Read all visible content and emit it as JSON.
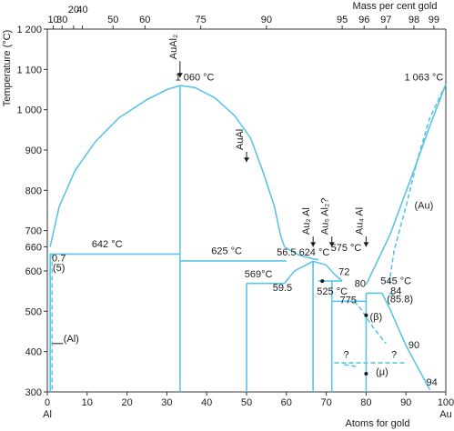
{
  "chart_data": {
    "type": "phase-diagram",
    "title": "",
    "ylabel": "Temperature (°C)",
    "xlabel_bottom": "Atoms for gold",
    "xlabel_top": "Mass per cent gold",
    "xlim": [
      0,
      100
    ],
    "ylim": [
      300,
      1200
    ],
    "x_end_labels": [
      "Al",
      "Au"
    ],
    "y_ticks": [
      {
        "value": 300,
        "label": "300"
      },
      {
        "value": 400,
        "label": "400"
      },
      {
        "value": 500,
        "label": "500"
      },
      {
        "value": 600,
        "label": "600"
      },
      {
        "value": 660,
        "label": "660"
      },
      {
        "value": 700,
        "label": "700"
      },
      {
        "value": 800,
        "label": "800"
      },
      {
        "value": 900,
        "label": "900"
      },
      {
        "value": 1000,
        "label": "1 000"
      },
      {
        "value": 1100,
        "label": "1 100"
      },
      {
        "value": 1200,
        "label": "1 200"
      }
    ],
    "x_ticks": [
      {
        "value": 0,
        "label": "0"
      },
      {
        "value": 10,
        "label": "10"
      },
      {
        "value": 20,
        "label": "20"
      },
      {
        "value": 30,
        "label": "30"
      },
      {
        "value": 40,
        "label": "40"
      },
      {
        "value": 50,
        "label": "50"
      },
      {
        "value": 60,
        "label": "60"
      },
      {
        "value": 70,
        "label": "70"
      },
      {
        "value": 80,
        "label": "80"
      },
      {
        "value": 90,
        "label": "90"
      },
      {
        "value": 100,
        "label": "100"
      }
    ],
    "top_ticks": [
      {
        "at": 1.5,
        "label": "10"
      },
      {
        "at": 3.7,
        "label": "30"
      },
      {
        "at": 6.6,
        "label": "20"
      },
      {
        "at": 8.8,
        "label": "40"
      },
      {
        "at": 16.5,
        "label": "50"
      },
      {
        "at": 24.5,
        "label": "60"
      },
      {
        "at": 38.5,
        "label": "75"
      },
      {
        "at": 55.0,
        "label": "90"
      },
      {
        "at": 74.0,
        "label": "95"
      },
      {
        "at": 79.5,
        "label": "96"
      },
      {
        "at": 85.0,
        "label": "97"
      },
      {
        "at": 92.0,
        "label": "98"
      },
      {
        "at": 97.0,
        "label": "99"
      }
    ],
    "line_color": "#5bc4e9",
    "phase_labels": [
      {
        "text": "1 060 °C",
        "x": 37,
        "y": 1073
      },
      {
        "text": "1 063 °C",
        "x": 94.5,
        "y": 1073
      },
      {
        "text": "642 °C",
        "x": 15,
        "y": 659
      },
      {
        "text": "625 °C",
        "x": 45,
        "y": 642
      },
      {
        "text": "56.5",
        "x": 60,
        "y": 638
      },
      {
        "text": "624 °C",
        "x": 67,
        "y": 638
      },
      {
        "text": "575 °C",
        "x": 75,
        "y": 650
      },
      {
        "text": "569°C",
        "x": 53,
        "y": 584
      },
      {
        "text": "59.5",
        "x": 59,
        "y": 550
      },
      {
        "text": "72",
        "x": 74.5,
        "y": 590
      },
      {
        "text": "525 °C",
        "x": 71.5,
        "y": 541
      },
      {
        "text": "80",
        "x": 78.5,
        "y": 560
      },
      {
        "text": "545 °C",
        "x": 87.5,
        "y": 567
      },
      {
        "text": "84",
        "x": 87.5,
        "y": 543
      },
      {
        "text": "(85.8)",
        "x": 88.5,
        "y": 522
      },
      {
        "text": "775",
        "x": 75.5,
        "y": 520
      },
      {
        "text": "(β)",
        "x": 82.5,
        "y": 478
      },
      {
        "text": "0.7",
        "x": 2.9,
        "y": 624
      },
      {
        "text": "(5)",
        "x": 2.9,
        "y": 600
      },
      {
        "text": "(Al)",
        "x": 6,
        "y": 424
      },
      {
        "text": "(Au)",
        "x": 94.5,
        "y": 754
      },
      {
        "text": "90",
        "x": 92,
        "y": 408
      },
      {
        "text": "94",
        "x": 96.5,
        "y": 316
      },
      {
        "text": "?",
        "x": 75,
        "y": 385
      },
      {
        "text": "?",
        "x": 87,
        "y": 385
      },
      {
        "text": "(μ)",
        "x": 84,
        "y": 342
      }
    ],
    "compound_labels": [
      {
        "text": "AuAl₂",
        "x": 33.3
      },
      {
        "text": "AuAl",
        "x": 50
      },
      {
        "text": "Au₂ Al",
        "x": 66.7
      },
      {
        "text": "Au₅ Al₂?",
        "x": 71.4
      },
      {
        "text": "Au₄ Al",
        "x": 80
      }
    ]
  }
}
